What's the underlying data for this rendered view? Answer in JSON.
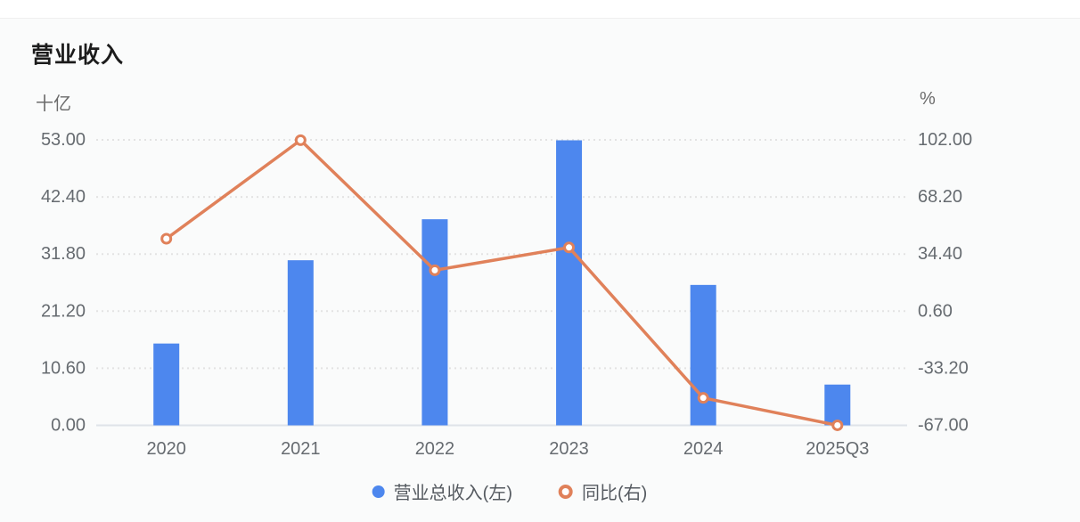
{
  "header": {
    "title": "营业收入"
  },
  "chart_data": {
    "type": "bar",
    "subtype": "bar+line dual-axis combo",
    "categories": [
      "2020",
      "2021",
      "2022",
      "2023",
      "2024",
      "2025Q3"
    ],
    "series": [
      {
        "name": "营业总收入(左)",
        "type": "bar",
        "axis": "left",
        "color": "#4d87ee",
        "values": [
          15.19,
          30.65,
          38.26,
          52.92,
          26.07,
          7.57
        ]
      },
      {
        "name": "同比(右)",
        "type": "line",
        "axis": "right",
        "color": "#e0815a",
        "marker": "hollow-circle",
        "values": [
          43.48,
          101.79,
          24.83,
          38.3,
          -50.74,
          -66.97
        ]
      }
    ],
    "left_axis": {
      "unit": "十亿",
      "min": 0,
      "max": 53,
      "ticks": [
        "53.00",
        "42.40",
        "31.80",
        "21.20",
        "10.60",
        "0.00"
      ]
    },
    "right_axis": {
      "unit": "%",
      "min": -67,
      "max": 102,
      "ticks": [
        "102.00",
        "68.20",
        "34.40",
        "0.60",
        "-33.20",
        "-67.00"
      ]
    },
    "grid": "horizontal dotted lines, solid baseline",
    "legend_position": "bottom-center",
    "colors": {
      "grid_line": "#e3e3e3",
      "axis_line": "#dfe3e8",
      "tick_text": "#666b70",
      "title_text": "#1c1c1c"
    }
  }
}
